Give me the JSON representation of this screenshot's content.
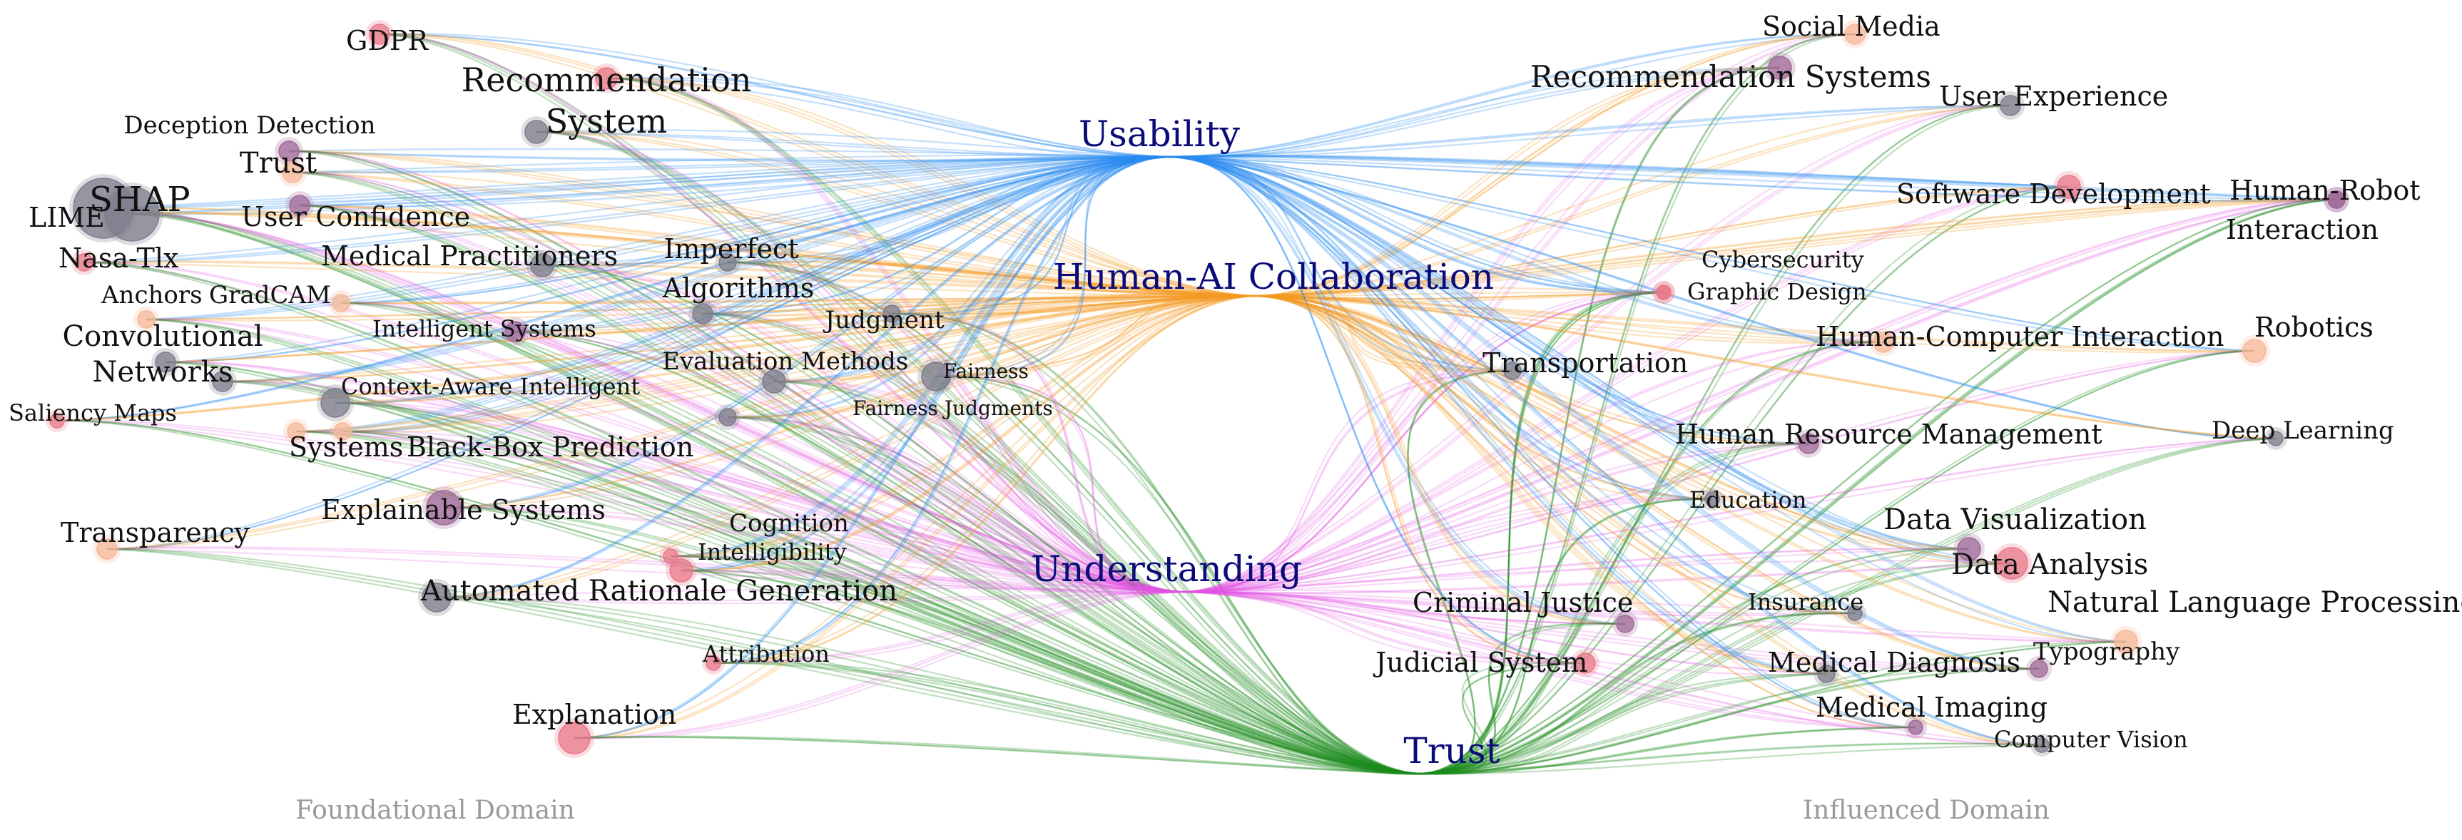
{
  "hubs": [
    {
      "id": "usability",
      "label": "Usability",
      "color": "#2b8cf0"
    },
    {
      "id": "hac",
      "label": "Human-AI Collaboration",
      "color": "#f59a23"
    },
    {
      "id": "understanding",
      "label": "Understanding",
      "color": "#e255e2"
    },
    {
      "id": "trust",
      "label": "Trust",
      "color": "#1e8c1e"
    }
  ],
  "domains": {
    "left": "Foundational Domain",
    "right": "Influenced Domain"
  },
  "node_colors": {
    "pink": "#e8798a",
    "grey": "#7d7d8c",
    "peach": "#f6b89a",
    "mauve": "#a06a9a"
  },
  "left_nodes": [
    {
      "label": "GDPR",
      "color": "pink"
    },
    {
      "label": "Recommendation",
      "color": "pink"
    },
    {
      "label": "System",
      "color": "grey"
    },
    {
      "label": "Deception Detection",
      "color": "mauve"
    },
    {
      "label": "Trust",
      "color": "peach"
    },
    {
      "label": "SHAP",
      "color": "grey"
    },
    {
      "label": "LIME",
      "color": "grey"
    },
    {
      "label": "User Confidence",
      "color": "mauve"
    },
    {
      "label": "Nasa-Tlx",
      "color": "pink"
    },
    {
      "label": "Medical Practitioners",
      "color": "grey"
    },
    {
      "label": "Imperfect",
      "color": "grey"
    },
    {
      "label": "Algorithms",
      "color": "grey"
    },
    {
      "label": "Anchors",
      "color": "peach"
    },
    {
      "label": "GradCAM",
      "color": "peach"
    },
    {
      "label": "Judgment",
      "color": "grey"
    },
    {
      "label": "Convolutional",
      "color": "grey"
    },
    {
      "label": "Networks",
      "color": "grey"
    },
    {
      "label": "Intelligent Systems",
      "color": "mauve"
    },
    {
      "label": "Evaluation Methods",
      "color": "grey"
    },
    {
      "label": "Fairness",
      "color": "grey"
    },
    {
      "label": "Context-Aware Intelligent",
      "color": "grey"
    },
    {
      "label": "Fairness Judgments",
      "color": "grey"
    },
    {
      "label": "Saliency Maps",
      "color": "pink"
    },
    {
      "label": "Systems",
      "color": "peach"
    },
    {
      "label": "Black-Box Prediction",
      "color": "peach"
    },
    {
      "label": "Explainable Systems",
      "color": "mauve"
    },
    {
      "label": "Cognition",
      "color": "pink"
    },
    {
      "label": "Transparency",
      "color": "peach"
    },
    {
      "label": "Intelligibility",
      "color": "pink"
    },
    {
      "label": "Automated Rationale Generation",
      "color": "grey"
    },
    {
      "label": "Attribution",
      "color": "pink"
    },
    {
      "label": "Explanation",
      "color": "pink"
    }
  ],
  "right_nodes": [
    {
      "label": "Social Media",
      "color": "peach"
    },
    {
      "label": "Recommendation Systems",
      "color": "mauve"
    },
    {
      "label": "User Experience",
      "color": "grey"
    },
    {
      "label": "Software Development",
      "color": "pink"
    },
    {
      "label": "Human-Robot",
      "color": "mauve"
    },
    {
      "label": "Interaction",
      "color": "mauve"
    },
    {
      "label": "Cybersecurity",
      "color": "pink"
    },
    {
      "label": "Graphic Design",
      "color": "pink"
    },
    {
      "label": "Human-Computer Interaction",
      "color": "peach"
    },
    {
      "label": "Robotics",
      "color": "peach"
    },
    {
      "label": "Transportation",
      "color": "grey"
    },
    {
      "label": "Human Resource Management",
      "color": "mauve"
    },
    {
      "label": "Deep Learning",
      "color": "grey"
    },
    {
      "label": "Education",
      "color": "grey"
    },
    {
      "label": "Data Visualization",
      "color": "mauve"
    },
    {
      "label": "Data Analysis",
      "color": "pink"
    },
    {
      "label": "Natural Language Processing",
      "color": "peach"
    },
    {
      "label": "Criminal Justice",
      "color": "mauve"
    },
    {
      "label": "Insurance",
      "color": "grey"
    },
    {
      "label": "Judicial System",
      "color": "pink"
    },
    {
      "label": "Medical Diagnosis",
      "color": "grey"
    },
    {
      "label": "Typography",
      "color": "mauve"
    },
    {
      "label": "Medical Imaging",
      "color": "mauve"
    },
    {
      "label": "Computer Vision",
      "color": "grey"
    }
  ]
}
